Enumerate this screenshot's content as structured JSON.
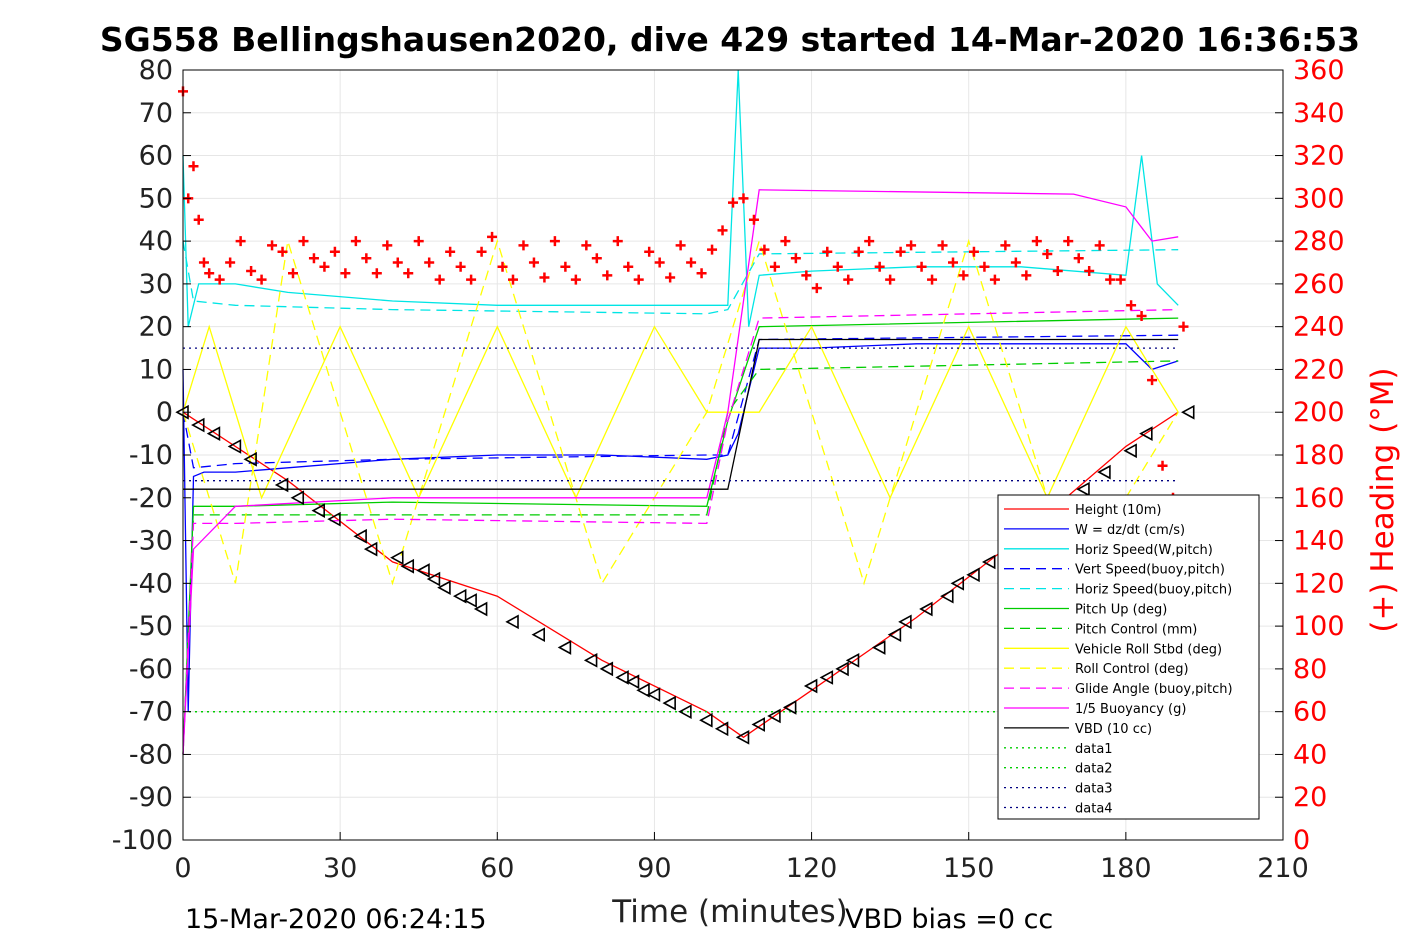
{
  "title": "SG558 Bellingshausen2020, dive 429 started 14-Mar-2020 16:36:53",
  "footer_left": "15-Mar-2020 06:24:15",
  "footer_right": "VBD bias =0 cc",
  "colors": {
    "heading": "#ff0000",
    "grid": "#e6e6e6"
  },
  "chart_data": {
    "type": "line",
    "xlabel": "Time (minutes)",
    "ylabel_right": "(+) Heading (°M)",
    "xlim": [
      0,
      210
    ],
    "ylim_left": [
      -100,
      80
    ],
    "ylim_right": [
      0,
      360
    ],
    "xticks": [
      0,
      30,
      60,
      90,
      120,
      150,
      180,
      210
    ],
    "yticks_left": [
      80,
      70,
      60,
      50,
      40,
      30,
      20,
      10,
      0,
      -10,
      -20,
      -30,
      -40,
      -50,
      -60,
      -70,
      -80,
      -90,
      -100
    ],
    "yticks_right": [
      360,
      340,
      320,
      300,
      280,
      260,
      240,
      220,
      200,
      180,
      160,
      140,
      120,
      100,
      80,
      60,
      40,
      20,
      0
    ],
    "grid": true,
    "legend_position": "lower-right",
    "series": [
      {
        "name": "Height (10m)",
        "color": "#ff0000",
        "style": "solid",
        "x": [
          0,
          20,
          40,
          60,
          80,
          100,
          107,
          120,
          140,
          160,
          180,
          190
        ],
        "y": [
          0,
          -16,
          -35,
          -43,
          -58,
          -70,
          -76,
          -65,
          -48,
          -29,
          -8,
          0
        ]
      },
      {
        "name": "W = dz/dt (cm/s)",
        "color": "#0000ff",
        "style": "solid",
        "x": [
          0,
          1,
          2,
          4,
          10,
          20,
          40,
          60,
          80,
          100,
          104,
          106,
          108,
          110,
          120,
          140,
          160,
          180,
          185,
          190
        ],
        "y": [
          10,
          -70,
          -15,
          -14,
          -14,
          -13,
          -11,
          -10,
          -10,
          -11,
          -10,
          -5,
          5,
          15,
          15,
          16,
          16,
          16,
          10,
          12
        ]
      },
      {
        "name": "Horiz Speed(W,pitch)",
        "color": "#00e5e5",
        "style": "solid",
        "x": [
          0,
          1,
          3,
          10,
          20,
          40,
          60,
          80,
          100,
          104,
          106,
          108,
          110,
          120,
          140,
          160,
          180,
          183,
          186,
          190
        ],
        "y": [
          60,
          20,
          30,
          30,
          28,
          26,
          25,
          25,
          25,
          25,
          80,
          20,
          32,
          33,
          34,
          34,
          32,
          60,
          30,
          25
        ]
      },
      {
        "name": "Vert Speed(buoy,pitch)",
        "color": "#0000ff",
        "style": "dashed",
        "x": [
          0,
          2,
          10,
          40,
          100,
          104,
          110,
          190
        ],
        "y": [
          0,
          -13,
          -12,
          -11,
          -10,
          -10,
          17,
          18
        ]
      },
      {
        "name": "Horiz Speed(buoy,pitch)",
        "color": "#00e5e5",
        "style": "dashed",
        "x": [
          0,
          2,
          10,
          40,
          100,
          104,
          110,
          190
        ],
        "y": [
          40,
          26,
          25,
          24,
          23,
          24,
          37,
          38
        ]
      },
      {
        "name": "Pitch Up (deg)",
        "color": "#00cc00",
        "style": "solid",
        "x": [
          0,
          2,
          10,
          40,
          100,
          104,
          110,
          190
        ],
        "y": [
          -80,
          -22,
          -22,
          -21,
          -22,
          -2,
          20,
          22
        ]
      },
      {
        "name": "Pitch Control (mm)",
        "color": "#00cc00",
        "style": "dashed",
        "x": [
          0,
          2,
          10,
          40,
          100,
          104,
          110,
          190
        ],
        "y": [
          -80,
          -24,
          -24,
          -24,
          -24,
          0,
          10,
          12
        ]
      },
      {
        "name": "Vehicle Roll Stbd (deg)",
        "color": "#ffff00",
        "style": "solid",
        "x": [
          0,
          5,
          15,
          30,
          45,
          60,
          75,
          90,
          100,
          110,
          120,
          135,
          150,
          165,
          180,
          190
        ],
        "y": [
          0,
          20,
          -20,
          20,
          -20,
          20,
          -20,
          20,
          0,
          0,
          20,
          -20,
          20,
          -20,
          20,
          0
        ]
      },
      {
        "name": "Roll Control (deg)",
        "color": "#ffff00",
        "style": "dashed",
        "x": [
          0,
          10,
          20,
          40,
          60,
          80,
          100,
          110,
          130,
          150,
          170,
          190
        ],
        "y": [
          0,
          -40,
          40,
          -40,
          40,
          -40,
          0,
          40,
          -40,
          40,
          -40,
          0
        ]
      },
      {
        "name": "Glide Angle (buoy,pitch)",
        "color": "#ff00ff",
        "style": "dashed",
        "x": [
          0,
          2,
          10,
          40,
          100,
          104,
          110,
          190
        ],
        "y": [
          -80,
          -26,
          -26,
          -25,
          -26,
          -2,
          22,
          24
        ]
      },
      {
        "name": "1/5 Buoyancy (g)",
        "color": "#ff00ff",
        "style": "solid",
        "x": [
          0,
          2,
          10,
          40,
          100,
          104,
          110,
          170,
          180,
          185,
          190
        ],
        "y": [
          -80,
          -32,
          -22,
          -20,
          -20,
          0,
          52,
          51,
          48,
          40,
          41
        ]
      },
      {
        "name": "VBD (10 cc)",
        "color": "#000000",
        "style": "solid",
        "x": [
          0,
          104,
          110,
          190
        ],
        "y": [
          -18,
          -18,
          17,
          17
        ]
      },
      {
        "name": "data1",
        "color": "#00cc00",
        "style": "dotted",
        "x": [
          0,
          190
        ],
        "y": [
          -70,
          -70
        ]
      },
      {
        "name": "data2",
        "color": "#00cc00",
        "style": "dotted",
        "x": [
          0,
          190
        ],
        "y": [
          -70,
          -70
        ]
      },
      {
        "name": "data3",
        "color": "#000080",
        "style": "dotted",
        "x": [
          0,
          190
        ],
        "y": [
          -16,
          -16
        ]
      },
      {
        "name": "data4",
        "color": "#000080",
        "style": "dotted",
        "x": [
          0,
          190
        ],
        "y": [
          15,
          15
        ]
      }
    ],
    "depth_markers": {
      "x": [
        0,
        3,
        6,
        10,
        13,
        19,
        22,
        26,
        29,
        34,
        36,
        41,
        43,
        46,
        48,
        50,
        53,
        55,
        57,
        63,
        68,
        73,
        78,
        81,
        84,
        86,
        88,
        90,
        93,
        96,
        100,
        103,
        107,
        110,
        113,
        116,
        120,
        123,
        126,
        128,
        133,
        136,
        138,
        142,
        146,
        148,
        151,
        154,
        172,
        176,
        181,
        184,
        192
      ],
      "y": [
        0,
        -3,
        -5,
        -8,
        -11,
        -17,
        -20,
        -23,
        -25,
        -29,
        -32,
        -34,
        -36,
        -37,
        -39,
        -41,
        -43,
        -44,
        -46,
        -49,
        -52,
        -55,
        -58,
        -60,
        -62,
        -63,
        -65,
        -66,
        -68,
        -70,
        -72,
        -74,
        -76,
        -73,
        -71,
        -69,
        -64,
        -62,
        -60,
        -58,
        -55,
        -52,
        -49,
        -46,
        -43,
        -40,
        -38,
        -35,
        -18,
        -14,
        -9,
        -5,
        0
      ]
    },
    "heading": {
      "x": [
        0,
        1,
        2,
        3,
        4,
        5,
        7,
        9,
        11,
        13,
        15,
        17,
        19,
        21,
        23,
        25,
        27,
        29,
        31,
        33,
        35,
        37,
        39,
        41,
        43,
        45,
        47,
        49,
        51,
        53,
        55,
        57,
        59,
        61,
        63,
        65,
        67,
        69,
        71,
        73,
        75,
        77,
        79,
        81,
        83,
        85,
        87,
        89,
        91,
        93,
        95,
        97,
        99,
        101,
        103,
        105,
        107,
        109,
        111,
        113,
        115,
        117,
        119,
        121,
        123,
        125,
        127,
        129,
        131,
        133,
        135,
        137,
        139,
        141,
        143,
        145,
        147,
        149,
        151,
        153,
        155,
        157,
        159,
        161,
        163,
        165,
        167,
        169,
        171,
        173,
        175,
        177,
        179,
        181,
        183,
        185,
        187,
        189,
        191
      ],
      "y": [
        350,
        300,
        315,
        290,
        270,
        265,
        262,
        270,
        280,
        266,
        262,
        278,
        275,
        265,
        280,
        272,
        268,
        275,
        265,
        280,
        272,
        265,
        278,
        270,
        265,
        280,
        270,
        262,
        275,
        268,
        262,
        275,
        282,
        268,
        262,
        278,
        270,
        263,
        280,
        268,
        262,
        278,
        272,
        264,
        280,
        268,
        262,
        275,
        270,
        263,
        278,
        270,
        265,
        276,
        285,
        298,
        300,
        290,
        276,
        268,
        280,
        272,
        264,
        258,
        275,
        268,
        262,
        275,
        280,
        268,
        262,
        275,
        278,
        268,
        262,
        278,
        270,
        264,
        275,
        268,
        262,
        278,
        270,
        264,
        280,
        274,
        266,
        280,
        272,
        266,
        278,
        262,
        262,
        250,
        245,
        215,
        175,
        160,
        240
      ]
    }
  }
}
